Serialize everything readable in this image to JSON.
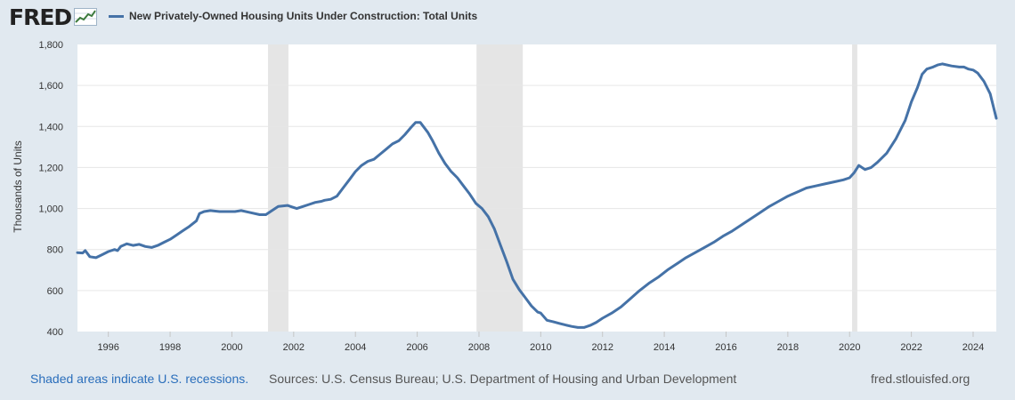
{
  "header": {
    "logo_text": "FRED",
    "legend_label": "New Privately-Owned Housing Units Under Construction: Total Units",
    "series_color": "#4572a7",
    "icons": [
      "fred-logo-graph-icon"
    ]
  },
  "footer": {
    "note": "Shaded areas indicate U.S. recessions.",
    "sources": "Sources: U.S. Census Bureau; U.S. Department of Housing and Urban Development",
    "site": "fred.stlouisfed.org"
  },
  "chart_data": {
    "type": "line",
    "title": "New Privately-Owned Housing Units Under Construction: Total Units",
    "xlabel": "",
    "ylabel": "Thousands of Units",
    "xlim": [
      1995.0,
      2024.75
    ],
    "ylim": [
      400,
      1800
    ],
    "grid": true,
    "legend": "top-left",
    "y_ticks": [
      400,
      600,
      800,
      1000,
      1200,
      1400,
      1600,
      1800
    ],
    "y_tick_labels": [
      "400",
      "600",
      "800",
      "1,000",
      "1,200",
      "1,400",
      "1,600",
      "1,800"
    ],
    "x_ticks": [
      1996,
      1998,
      2000,
      2002,
      2004,
      2006,
      2008,
      2010,
      2012,
      2014,
      2016,
      2018,
      2020,
      2022,
      2024
    ],
    "x_tick_labels": [
      "1996",
      "1998",
      "2000",
      "2002",
      "2004",
      "2006",
      "2008",
      "2010",
      "2012",
      "2014",
      "2016",
      "2018",
      "2020",
      "2022",
      "2024"
    ],
    "recessions": [
      [
        2001.17,
        2001.83
      ],
      [
        2007.92,
        2009.42
      ],
      [
        2020.08,
        2020.25
      ]
    ],
    "series": [
      {
        "name": "New Privately-Owned Housing Units Under Construction: Total Units",
        "x": [
          1995.0,
          1995.17,
          1995.25,
          1995.4,
          1995.6,
          1995.8,
          1996.0,
          1996.2,
          1996.3,
          1996.4,
          1996.6,
          1996.8,
          1997.0,
          1997.2,
          1997.4,
          1997.6,
          1997.8,
          1998.0,
          1998.2,
          1998.4,
          1998.6,
          1998.85,
          1998.95,
          1999.1,
          1999.3,
          1999.6,
          1999.9,
          2000.1,
          2000.3,
          2000.6,
          2000.9,
          2001.1,
          2001.3,
          2001.5,
          2001.8,
          2001.9,
          2002.1,
          2002.3,
          2002.5,
          2002.7,
          2002.9,
          2003.0,
          2003.2,
          2003.4,
          2003.6,
          2003.8,
          2004.0,
          2004.2,
          2004.4,
          2004.6,
          2004.8,
          2005.0,
          2005.2,
          2005.4,
          2005.6,
          2005.8,
          2005.95,
          2006.1,
          2006.2,
          2006.35,
          2006.5,
          2006.7,
          2006.9,
          2007.1,
          2007.3,
          2007.5,
          2007.7,
          2007.9,
          2008.1,
          2008.3,
          2008.5,
          2008.7,
          2008.9,
          2009.1,
          2009.3,
          2009.5,
          2009.7,
          2009.9,
          2010.0,
          2010.2,
          2010.4,
          2010.6,
          2010.8,
          2011.0,
          2011.2,
          2011.4,
          2011.6,
          2011.8,
          2012.0,
          2012.3,
          2012.6,
          2012.9,
          2013.2,
          2013.5,
          2013.8,
          2014.1,
          2014.4,
          2014.7,
          2015.0,
          2015.3,
          2015.6,
          2015.9,
          2016.2,
          2016.5,
          2016.8,
          2017.1,
          2017.4,
          2017.7,
          2018.0,
          2018.3,
          2018.6,
          2018.9,
          2019.2,
          2019.5,
          2019.8,
          2020.0,
          2020.15,
          2020.3,
          2020.5,
          2020.7,
          2020.9,
          2021.2,
          2021.5,
          2021.8,
          2022.0,
          2022.2,
          2022.35,
          2022.5,
          2022.7,
          2022.85,
          2023.0,
          2023.3,
          2023.55,
          2023.7,
          2023.85,
          2024.0,
          2024.15,
          2024.35,
          2024.55,
          2024.75
        ],
        "values": [
          785,
          783,
          795,
          765,
          760,
          775,
          790,
          800,
          795,
          815,
          828,
          820,
          825,
          815,
          810,
          820,
          835,
          850,
          870,
          890,
          910,
          940,
          975,
          985,
          990,
          985,
          985,
          985,
          990,
          980,
          970,
          970,
          990,
          1010,
          1015,
          1010,
          1000,
          1010,
          1020,
          1030,
          1035,
          1040,
          1045,
          1060,
          1100,
          1140,
          1180,
          1210,
          1230,
          1240,
          1265,
          1290,
          1315,
          1330,
          1360,
          1395,
          1420,
          1420,
          1400,
          1370,
          1330,
          1270,
          1220,
          1180,
          1150,
          1110,
          1070,
          1025,
          1000,
          960,
          900,
          820,
          740,
          655,
          605,
          565,
          525,
          495,
          490,
          455,
          448,
          440,
          432,
          425,
          420,
          420,
          430,
          445,
          465,
          490,
          520,
          560,
          600,
          635,
          665,
          700,
          730,
          760,
          785,
          810,
          835,
          865,
          890,
          920,
          950,
          980,
          1010,
          1035,
          1060,
          1080,
          1100,
          1110,
          1120,
          1130,
          1140,
          1150,
          1175,
          1210,
          1190,
          1200,
          1225,
          1270,
          1340,
          1430,
          1520,
          1590,
          1655,
          1680,
          1690,
          1700,
          1705,
          1695,
          1690,
          1690,
          1680,
          1675,
          1660,
          1620,
          1560,
          1440
        ]
      }
    ]
  }
}
